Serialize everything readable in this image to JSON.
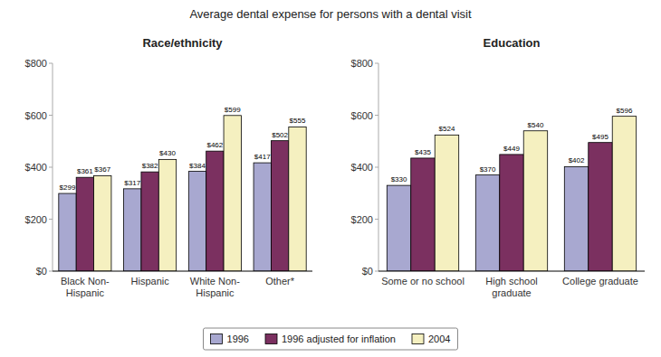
{
  "chart_data": [
    {
      "type": "bar",
      "title": "Average dental expense for persons with a dental visit",
      "subtitle": "Race/ethnicity",
      "categories": [
        "Black Non-\nHispanic",
        "Hispanic",
        "White Non-\nHispanic",
        "Other*"
      ],
      "series": [
        {
          "name": "1996",
          "color": "#a8a8d0",
          "values": [
            299,
            317,
            384,
            417
          ],
          "value_labels": [
            "$299",
            "$317",
            "$384",
            "$417"
          ]
        },
        {
          "name": "1996 adjusted for inflation",
          "color": "#7b3060",
          "values": [
            361,
            382,
            462,
            502
          ],
          "value_labels": [
            "$361",
            "$382",
            "$462",
            "$502"
          ]
        },
        {
          "name": "2004",
          "color": "#f5f0c0",
          "values": [
            367,
            430,
            599,
            555
          ],
          "value_labels": [
            "$367",
            "$430",
            "$599",
            "$555"
          ]
        }
      ],
      "ylim": [
        0,
        800
      ],
      "yticks": [
        {
          "value": 0,
          "label": "$0"
        },
        {
          "value": 200,
          "label": "$200"
        },
        {
          "value": 400,
          "label": "$400"
        },
        {
          "value": 600,
          "label": "$600"
        },
        {
          "value": 800,
          "label": "$800"
        }
      ],
      "data_labels": true,
      "legend": "bottom"
    },
    {
      "type": "bar",
      "subtitle": "Education",
      "categories": [
        "Some or no school",
        "High school\ngraduate",
        "College graduate"
      ],
      "series": [
        {
          "color": "#a8a8d0",
          "values": [
            330,
            370,
            402
          ],
          "value_labels": [
            "$330",
            "$370",
            "$402"
          ]
        },
        {
          "color": "#7b3060",
          "values": [
            435,
            449,
            495
          ],
          "value_labels": [
            "$435",
            "$449",
            "$495"
          ]
        },
        {
          "color": "#f5f0c0",
          "values": [
            524,
            540,
            596
          ],
          "value_labels": [
            "$524",
            "$540",
            "$596"
          ]
        }
      ],
      "ylim": [
        0,
        800
      ],
      "yticks": [
        {
          "value": 0,
          "label": "$0"
        },
        {
          "value": 200,
          "label": "$200"
        },
        {
          "value": 400,
          "label": "$400"
        },
        {
          "value": 600,
          "label": "$600"
        },
        {
          "value": 800,
          "label": "$800"
        }
      ],
      "data_labels": true
    }
  ]
}
